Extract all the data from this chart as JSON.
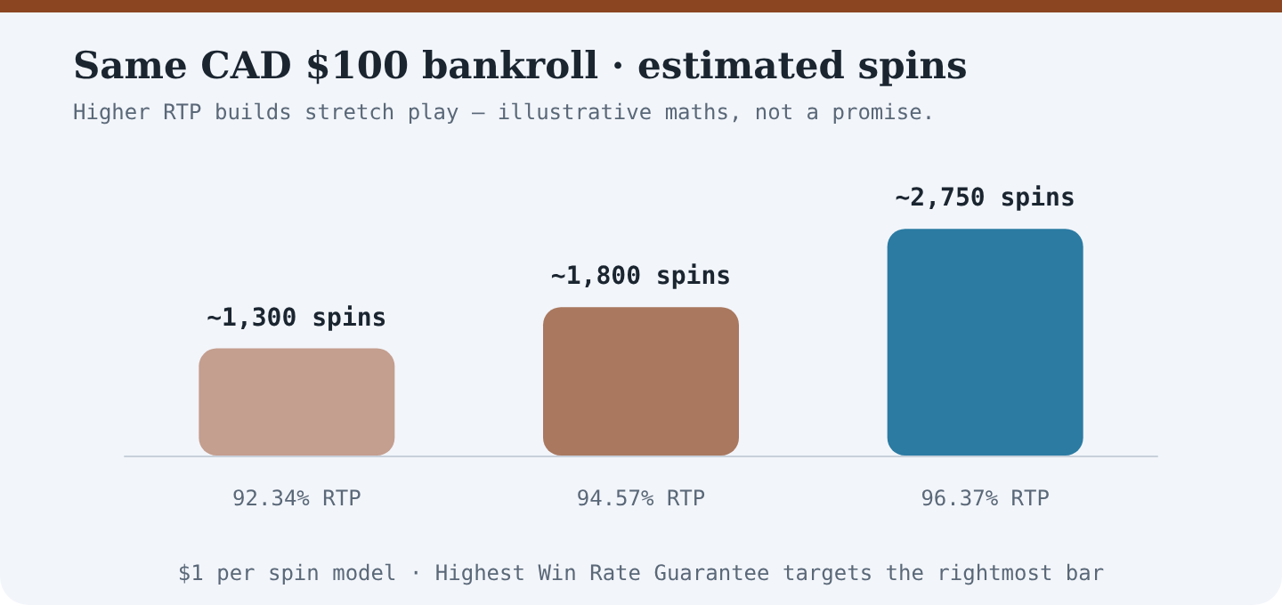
{
  "chart_data": {
    "type": "bar",
    "title": "Same CAD $100 bankroll · estimated spins",
    "subtitle": "Higher RTP builds stretch play — illustrative maths, not a promise.",
    "categories": [
      "92.34% RTP",
      "94.57% RTP",
      "96.37% RTP"
    ],
    "values": [
      1300,
      1800,
      2750
    ],
    "value_labels": [
      "~1,300 spins",
      "~1,800 spins",
      "~2,750 spins"
    ],
    "colors": [
      "#c49e8f",
      "#a9785f",
      "#2b7ba3"
    ],
    "annotations": [
      "$1 per spin model · Highest Win Rate Guarantee targets the rightmost bar"
    ]
  }
}
